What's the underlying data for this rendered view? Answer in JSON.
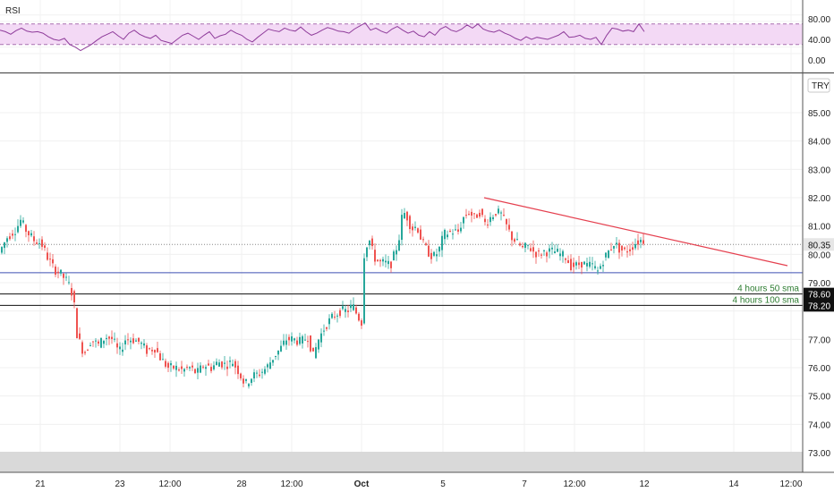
{
  "chart_data": [
    {
      "type": "line",
      "title": "RSI",
      "yticks": [
        "80.00",
        "40.00",
        "0.00"
      ],
      "ylim": [
        0,
        100
      ],
      "band": [
        30,
        70
      ],
      "x_range": [
        0,
        930
      ],
      "series": [
        {
          "values": [
            [
              0,
              58
            ],
            [
              6,
              55
            ],
            [
              12,
              50
            ],
            [
              18,
              57
            ],
            [
              24,
              62
            ],
            [
              30,
              56
            ],
            [
              36,
              54
            ],
            [
              42,
              55
            ],
            [
              48,
              52
            ],
            [
              54,
              45
            ],
            [
              60,
              40
            ],
            [
              66,
              38
            ],
            [
              72,
              42
            ],
            [
              78,
              30
            ],
            [
              84,
              25
            ],
            [
              90,
              18
            ],
            [
              96,
              24
            ],
            [
              102,
              30
            ],
            [
              108,
              38
            ],
            [
              114,
              45
            ],
            [
              120,
              50
            ],
            [
              126,
              55
            ],
            [
              132,
              47
            ],
            [
              138,
              40
            ],
            [
              144,
              52
            ],
            [
              150,
              58
            ],
            [
              156,
              50
            ],
            [
              162,
              45
            ],
            [
              168,
              42
            ],
            [
              174,
              48
            ],
            [
              180,
              38
            ],
            [
              186,
              35
            ],
            [
              192,
              32
            ],
            [
              198,
              40
            ],
            [
              204,
              48
            ],
            [
              210,
              52
            ],
            [
              216,
              46
            ],
            [
              222,
              40
            ],
            [
              228,
              48
            ],
            [
              234,
              55
            ],
            [
              240,
              42
            ],
            [
              246,
              47
            ],
            [
              252,
              50
            ],
            [
              258,
              58
            ],
            [
              264,
              52
            ],
            [
              270,
              48
            ],
            [
              276,
              40
            ],
            [
              282,
              35
            ],
            [
              288,
              44
            ],
            [
              294,
              52
            ],
            [
              300,
              60
            ],
            [
              306,
              57
            ],
            [
              312,
              55
            ],
            [
              318,
              62
            ],
            [
              324,
              58
            ],
            [
              330,
              56
            ],
            [
              336,
              64
            ],
            [
              342,
              55
            ],
            [
              348,
              48
            ],
            [
              354,
              52
            ],
            [
              360,
              58
            ],
            [
              366,
              63
            ],
            [
              372,
              60
            ],
            [
              378,
              56
            ],
            [
              384,
              55
            ],
            [
              390,
              52
            ],
            [
              396,
              60
            ],
            [
              402,
              66
            ],
            [
              408,
              72
            ],
            [
              414,
              58
            ],
            [
              420,
              62
            ],
            [
              426,
              56
            ],
            [
              432,
              52
            ],
            [
              438,
              60
            ],
            [
              444,
              65
            ],
            [
              450,
              58
            ],
            [
              456,
              52
            ],
            [
              462,
              56
            ],
            [
              468,
              48
            ],
            [
              474,
              45
            ],
            [
              480,
              55
            ],
            [
              486,
              48
            ],
            [
              492,
              60
            ],
            [
              498,
              65
            ],
            [
              504,
              58
            ],
            [
              510,
              55
            ],
            [
              516,
              60
            ],
            [
              522,
              68
            ],
            [
              528,
              62
            ],
            [
              534,
              70
            ],
            [
              540,
              60
            ],
            [
              546,
              56
            ],
            [
              552,
              54
            ],
            [
              558,
              58
            ],
            [
              564,
              52
            ],
            [
              570,
              48
            ],
            [
              576,
              42
            ],
            [
              582,
              38
            ],
            [
              588,
              45
            ],
            [
              594,
              40
            ],
            [
              600,
              44
            ],
            [
              606,
              42
            ],
            [
              612,
              40
            ],
            [
              618,
              44
            ],
            [
              624,
              48
            ],
            [
              630,
              55
            ],
            [
              636,
              44
            ],
            [
              642,
              45
            ],
            [
              648,
              48
            ],
            [
              654,
              42
            ],
            [
              660,
              40
            ],
            [
              666,
              44
            ],
            [
              672,
              30
            ],
            [
              678,
              48
            ],
            [
              684,
              62
            ],
            [
              690,
              60
            ],
            [
              696,
              56
            ],
            [
              702,
              58
            ],
            [
              708,
              55
            ],
            [
              714,
              70
            ],
            [
              720,
              55
            ]
          ]
        }
      ]
    },
    {
      "type": "candlestick",
      "currency": "TRY",
      "yticks": [
        "85.00",
        "84.00",
        "83.00",
        "82.00",
        "81.00",
        "80.00",
        "79.00",
        "77.00",
        "76.00",
        "75.00",
        "74.00",
        "73.00"
      ],
      "ylim": [
        72.8,
        86.0
      ],
      "xticks": [
        "21",
        "23",
        "12:00",
        "28",
        "12:00",
        "Oct",
        "5",
        "7",
        "12:00",
        "12",
        "14",
        "12:00"
      ],
      "last_price": "80.35",
      "horizontal_lines": [
        {
          "name": "support",
          "value": 79.35,
          "color": "#3f51b5"
        },
        {
          "name": "4 hours 50 sma",
          "value": 78.6,
          "color": "#111111",
          "label": "4 hours 50 sma",
          "price_label": "78.60"
        },
        {
          "name": "4 hours 100 sma",
          "value": 78.2,
          "color": "#111111",
          "label": "4 hours 100 sma",
          "price_label": "78.20"
        }
      ],
      "trendline": {
        "from": [
          541,
          82.0
        ],
        "to": [
          880,
          79.6
        ],
        "color": "#e5404f"
      },
      "series": [
        {
          "name": "price",
          "keypoints": [
            [
              0,
              80.0
            ],
            [
              10,
              80.6
            ],
            [
              20,
              80.9
            ],
            [
              25,
              81.2
            ],
            [
              32,
              80.8
            ],
            [
              40,
              80.5
            ],
            [
              48,
              80.4
            ],
            [
              55,
              79.9
            ],
            [
              62,
              79.5
            ],
            [
              70,
              79.3
            ],
            [
              78,
              79.0
            ],
            [
              84,
              78.5
            ],
            [
              88,
              77.2
            ],
            [
              92,
              76.8
            ],
            [
              96,
              76.5
            ],
            [
              104,
              77.0
            ],
            [
              112,
              76.8
            ],
            [
              120,
              77.1
            ],
            [
              128,
              77.0
            ],
            [
              135,
              76.5
            ],
            [
              142,
              77.0
            ],
            [
              150,
              77.0
            ],
            [
              158,
              76.9
            ],
            [
              166,
              76.6
            ],
            [
              175,
              76.7
            ],
            [
              182,
              76.3
            ],
            [
              190,
              76.0
            ],
            [
              198,
              76.0
            ],
            [
              206,
              75.9
            ],
            [
              214,
              76.0
            ],
            [
              222,
              75.8
            ],
            [
              230,
              76.1
            ],
            [
              238,
              76.0
            ],
            [
              246,
              76.2
            ],
            [
              254,
              76.1
            ],
            [
              262,
              76.2
            ],
            [
              268,
              75.9
            ],
            [
              276,
              75.4
            ],
            [
              284,
              75.7
            ],
            [
              292,
              75.8
            ],
            [
              300,
              76.0
            ],
            [
              308,
              76.4
            ],
            [
              316,
              76.7
            ],
            [
              322,
              77.0
            ],
            [
              330,
              77.0
            ],
            [
              338,
              76.9
            ],
            [
              346,
              77.1
            ],
            [
              352,
              76.4
            ],
            [
              358,
              77.0
            ],
            [
              366,
              77.5
            ],
            [
              374,
              77.8
            ],
            [
              382,
              78.0
            ],
            [
              390,
              78.0
            ],
            [
              396,
              78.2
            ],
            [
              402,
              77.8
            ],
            [
              406,
              77.6
            ],
            [
              409,
              80.0
            ],
            [
              414,
              80.6
            ],
            [
              420,
              79.9
            ],
            [
              426,
              79.7
            ],
            [
              432,
              79.7
            ],
            [
              438,
              79.6
            ],
            [
              444,
              80.1
            ],
            [
              448,
              80.6
            ],
            [
              452,
              81.5
            ],
            [
              456,
              81.4
            ],
            [
              462,
              80.9
            ],
            [
              468,
              81.0
            ],
            [
              474,
              80.4
            ],
            [
              480,
              80.1
            ],
            [
              486,
              79.9
            ],
            [
              492,
              80.1
            ],
            [
              498,
              80.7
            ],
            [
              506,
              80.8
            ],
            [
              514,
              80.8
            ],
            [
              520,
              81.3
            ],
            [
              526,
              81.5
            ],
            [
              532,
              81.3
            ],
            [
              538,
              81.5
            ],
            [
              544,
              81.1
            ],
            [
              550,
              81.3
            ],
            [
              556,
              81.5
            ],
            [
              562,
              81.4
            ],
            [
              568,
              81.0
            ],
            [
              574,
              80.6
            ],
            [
              580,
              80.4
            ],
            [
              586,
              80.2
            ],
            [
              592,
              80.3
            ],
            [
              598,
              80.1
            ],
            [
              604,
              80.0
            ],
            [
              610,
              80.1
            ],
            [
              616,
              80.1
            ],
            [
              622,
              80.1
            ],
            [
              628,
              80.0
            ],
            [
              634,
              79.9
            ],
            [
              640,
              79.6
            ],
            [
              646,
              79.6
            ],
            [
              652,
              79.7
            ],
            [
              658,
              79.6
            ],
            [
              664,
              79.6
            ],
            [
              670,
              79.4
            ],
            [
              676,
              79.8
            ],
            [
              682,
              80.1
            ],
            [
              688,
              80.4
            ],
            [
              694,
              80.2
            ],
            [
              700,
              80.1
            ],
            [
              706,
              80.2
            ],
            [
              712,
              80.4
            ],
            [
              718,
              80.5
            ]
          ]
        }
      ]
    }
  ]
}
